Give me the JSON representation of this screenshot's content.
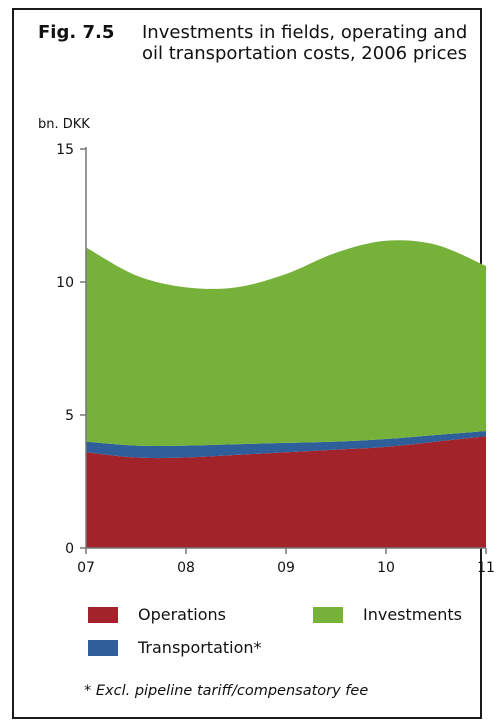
{
  "figure": {
    "label": "Fig. 7.5",
    "title": "Investments in fields, operating and oil transportation costs, 2006 prices",
    "footnote": "* Excl. pipeline tariff/compensatory fee"
  },
  "chart_data": {
    "type": "area",
    "stacked": true,
    "title": "Investments in fields, operating and oil transportation costs, 2006 prices",
    "ylabel": "bn. DKK",
    "xlabel": "",
    "ylim": [
      0,
      15
    ],
    "yticks": [
      0,
      5,
      10,
      15
    ],
    "categories": [
      "07",
      "08",
      "09",
      "10",
      "11"
    ],
    "x": [
      0,
      0.5,
      1,
      1.5,
      2,
      2.5,
      3,
      3.5,
      4
    ],
    "series": [
      {
        "name": "Operations",
        "color": "#a3232a",
        "values": [
          3.6,
          3.4,
          3.4,
          3.5,
          3.6,
          3.7,
          3.8,
          4.0,
          4.2
        ]
      },
      {
        "name": "Transportation*",
        "color": "#2f5f9a",
        "values": [
          0.4,
          0.45,
          0.45,
          0.4,
          0.35,
          0.3,
          0.3,
          0.25,
          0.2
        ]
      },
      {
        "name": "Investments",
        "color": "#76b13a",
        "values": [
          7.3,
          6.4,
          5.95,
          5.9,
          6.35,
          7.1,
          7.45,
          7.15,
          6.2
        ]
      }
    ],
    "grid": false,
    "legend_position": "bottom"
  }
}
